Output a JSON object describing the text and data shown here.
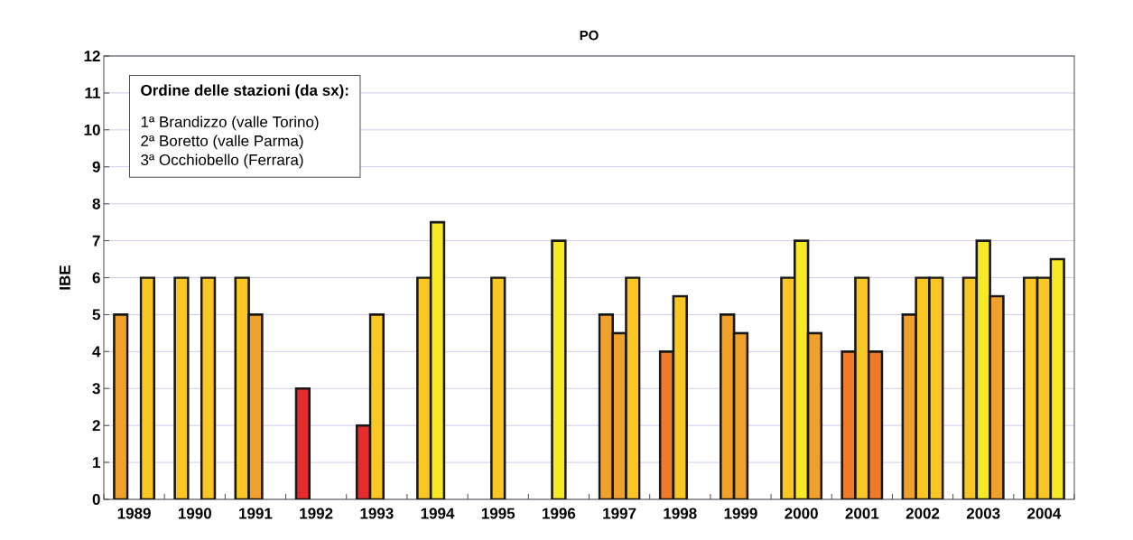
{
  "chart_data": {
    "type": "bar",
    "title": "PO",
    "ylabel": "IBE",
    "categories": [
      "1989",
      "1990",
      "1991",
      "1992",
      "1993",
      "1994",
      "1995",
      "1996",
      "1997",
      "1998",
      "1999",
      "2000",
      "2001",
      "2002",
      "2003",
      "2004"
    ],
    "series": [
      {
        "values": [
          5,
          6,
          6,
          3,
          2,
          6,
          null,
          null,
          5,
          4,
          5,
          6,
          4,
          5,
          6,
          6
        ],
        "colors": [
          "#f0a12c",
          "#f9c623",
          "#f9c623",
          "#e52b2b",
          "#e52b2b",
          "#f9c623",
          null,
          null,
          "#f0a12c",
          "#ee7a2a",
          "#f0a12c",
          "#f9c623",
          "#ee7a2a",
          "#f0a12c",
          "#f9c623",
          "#f9c623"
        ]
      },
      {
        "values": [
          null,
          null,
          5,
          null,
          5,
          7.5,
          6,
          7,
          4.5,
          5.5,
          4.5,
          7,
          6,
          6,
          7,
          6
        ],
        "colors": [
          null,
          null,
          "#f0a12c",
          null,
          "#f9c623",
          "#f7e925",
          "#f9c623",
          "#f7e925",
          "#f0a12c",
          "#f9c623",
          "#f0a12c",
          "#f7e925",
          "#f9c623",
          "#f9c623",
          "#f7e925",
          "#f9c623"
        ]
      },
      {
        "values": [
          6,
          6,
          null,
          null,
          null,
          null,
          null,
          null,
          6,
          null,
          null,
          4.5,
          4,
          6,
          5.5,
          6.5
        ],
        "colors": [
          "#f9c623",
          "#f9c623",
          null,
          null,
          null,
          null,
          null,
          null,
          "#f9c623",
          null,
          null,
          "#f0a12c",
          "#ee7a2a",
          "#f9c623",
          "#f0a12c",
          "#f7e925"
        ]
      }
    ],
    "ylim": [
      0,
      12
    ],
    "yticks": [
      0,
      1,
      2,
      3,
      4,
      5,
      6,
      7,
      8,
      9,
      10,
      11,
      12
    ],
    "grid": "y",
    "annotations": [
      "Ordine delle stazioni (da sx):",
      "1ª   Brandizzo (valle Torino)",
      "2ª   Boretto (valle Parma)",
      "3ª   Occhiobello (Ferrara)"
    ]
  }
}
